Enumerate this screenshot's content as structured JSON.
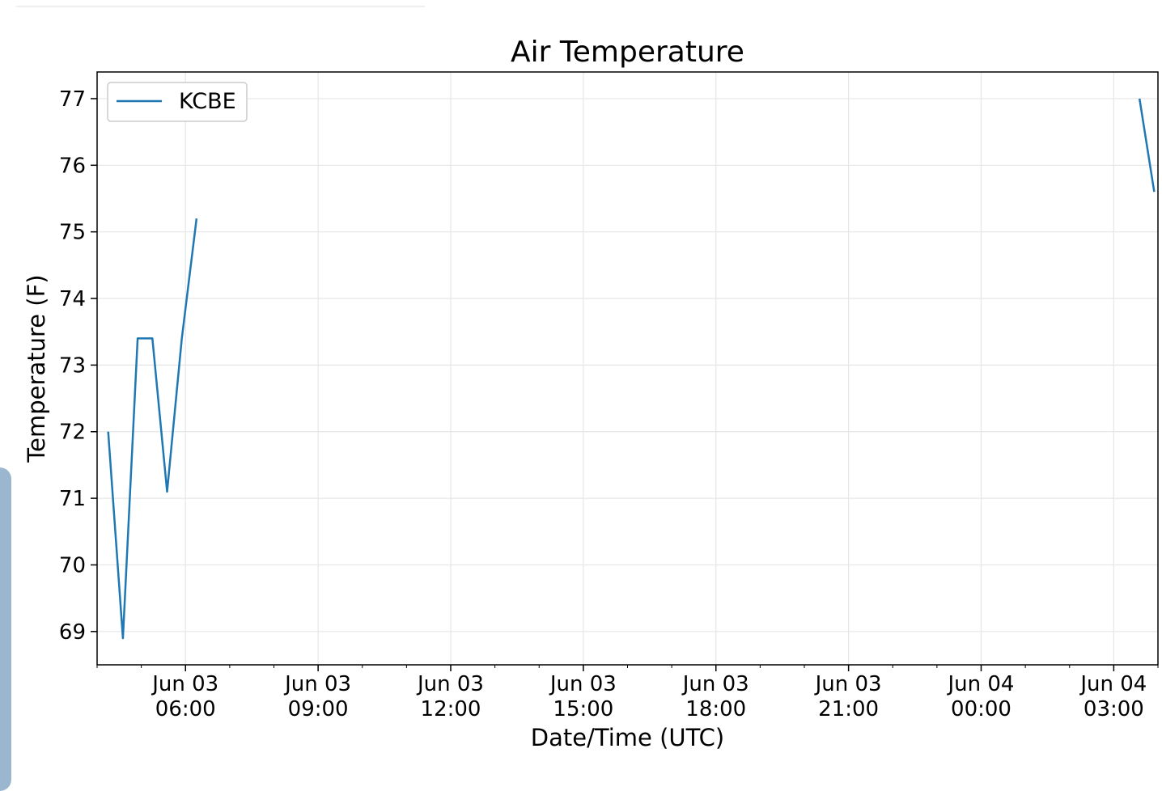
{
  "chart_data": {
    "type": "line",
    "title": "Air Temperature",
    "xlabel": "Date/Time (UTC)",
    "ylabel": "Temperature (F)",
    "legend": {
      "placement": "top-left",
      "entries": [
        "KCBE"
      ]
    },
    "grid": true,
    "xlim": [
      "2024-06-03 04:00",
      "2024-06-04 04:00"
    ],
    "ylim": [
      68.5,
      77.4
    ],
    "x_ticks": [
      {
        "value": "2024-06-03 06:00",
        "line1": "Jun 03",
        "line2": "06:00"
      },
      {
        "value": "2024-06-03 09:00",
        "line1": "Jun 03",
        "line2": "09:00"
      },
      {
        "value": "2024-06-03 12:00",
        "line1": "Jun 03",
        "line2": "12:00"
      },
      {
        "value": "2024-06-03 15:00",
        "line1": "Jun 03",
        "line2": "15:00"
      },
      {
        "value": "2024-06-03 18:00",
        "line1": "Jun 03",
        "line2": "18:00"
      },
      {
        "value": "2024-06-03 21:00",
        "line1": "Jun 03",
        "line2": "21:00"
      },
      {
        "value": "2024-06-04 00:00",
        "line1": "Jun 04",
        "line2": "00:00"
      },
      {
        "value": "2024-06-04 03:00",
        "line1": "Jun 04",
        "line2": "03:00"
      }
    ],
    "y_ticks": [
      69,
      70,
      71,
      72,
      73,
      74,
      75,
      76,
      77
    ],
    "series": [
      {
        "name": "KCBE",
        "color": "#1f77b4",
        "segments": [
          [
            {
              "x": "2024-06-03 04:15",
              "y": 72.0
            },
            {
              "x": "2024-06-03 04:35",
              "y": 68.9
            },
            {
              "x": "2024-06-03 04:55",
              "y": 73.4
            },
            {
              "x": "2024-06-03 05:15",
              "y": 73.4
            },
            {
              "x": "2024-06-03 05:35",
              "y": 71.1
            },
            {
              "x": "2024-06-03 05:55",
              "y": 73.4
            },
            {
              "x": "2024-06-03 06:15",
              "y": 75.2
            }
          ],
          [
            {
              "x": "2024-06-04 03:35",
              "y": 77.0
            },
            {
              "x": "2024-06-04 03:55",
              "y": 75.6
            }
          ]
        ]
      }
    ]
  }
}
